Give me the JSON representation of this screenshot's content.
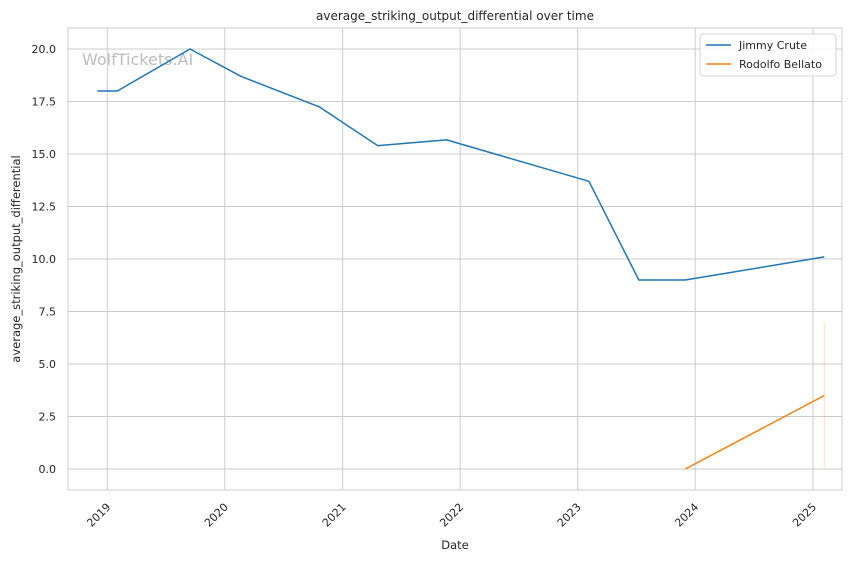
{
  "chart_data": {
    "type": "line",
    "title": "average_striking_output_differential over time",
    "xlabel": "Date",
    "ylabel": "average_striking_output_differential",
    "watermark": "WolfTickets.AI",
    "x_ticks": [
      "2019",
      "2020",
      "2021",
      "2022",
      "2023",
      "2024",
      "2025"
    ],
    "y_ticks": [
      "0.0",
      "2.5",
      "5.0",
      "7.5",
      "10.0",
      "12.5",
      "15.0",
      "17.5",
      "20.0"
    ],
    "xlim": [
      "2018-09-01",
      "2025-04-01"
    ],
    "ylim": [
      -1.0,
      21.0
    ],
    "grid": true,
    "legend_position": "top-right",
    "series": [
      {
        "name": "Jimmy Crute",
        "color": "#1f77b4",
        "points": [
          {
            "x": "2018-12-01",
            "y": 18.0
          },
          {
            "x": "2019-02-01",
            "y": 18.0
          },
          {
            "x": "2019-09-15",
            "y": 20.0
          },
          {
            "x": "2020-02-20",
            "y": 18.7
          },
          {
            "x": "2020-10-20",
            "y": 17.25
          },
          {
            "x": "2021-04-20",
            "y": 15.4
          },
          {
            "x": "2021-11-20",
            "y": 15.67
          },
          {
            "x": "2023-02-05",
            "y": 13.7
          },
          {
            "x": "2023-07-10",
            "y": 9.0
          },
          {
            "x": "2023-12-01",
            "y": 9.0
          },
          {
            "x": "2025-02-05",
            "y": 10.1
          }
        ]
      },
      {
        "name": "Rodolfo Bellato",
        "color": "#ff7f0e",
        "points": [
          {
            "x": "2023-12-01",
            "y": 0.0
          },
          {
            "x": "2025-02-05",
            "y": 3.5
          }
        ],
        "band": {
          "x": "2025-02-05",
          "y_low": 0.0,
          "y_high": 7.0
        }
      }
    ]
  }
}
